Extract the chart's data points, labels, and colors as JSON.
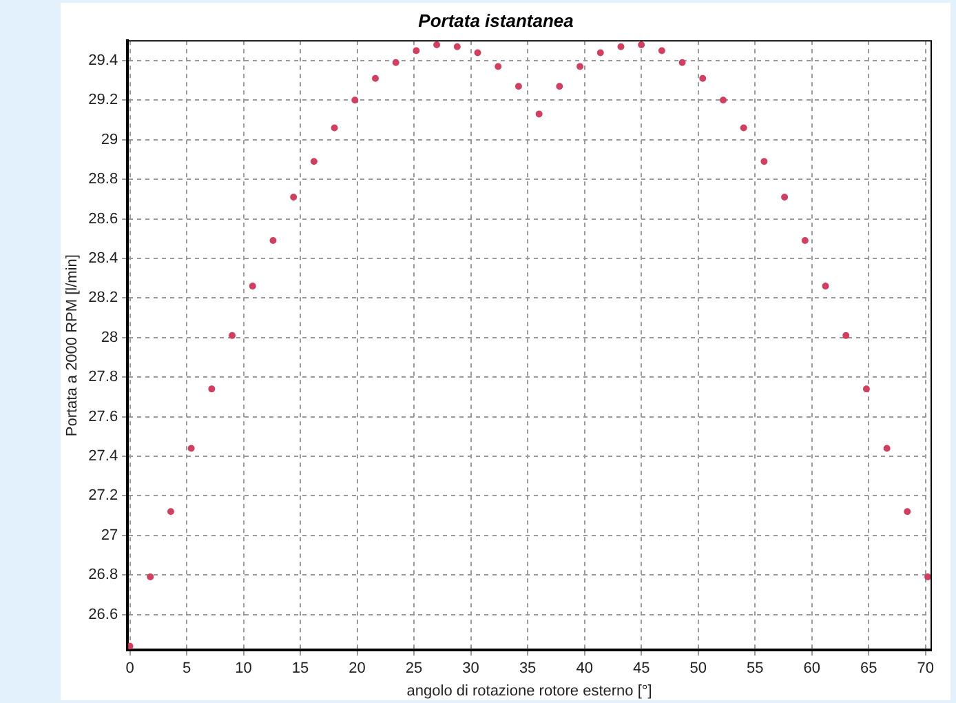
{
  "chart_data": {
    "type": "scatter",
    "title": "Portata istantanea",
    "xlabel": "angolo di rotazione rotore esterno [°]",
    "ylabel": "Portata a 2000 RPM [l/min]",
    "x": [
      0,
      1.8,
      3.6,
      5.4,
      7.2,
      9,
      10.8,
      12.6,
      14.4,
      16.2,
      18,
      19.8,
      21.6,
      23.4,
      25.2,
      27,
      28.8,
      30.6,
      32.4,
      34.2,
      36,
      37.8,
      39.6,
      41.4,
      43.2,
      45,
      46.8,
      48.6,
      50.4,
      52.2,
      54,
      55.8,
      57.6,
      59.4,
      61.2,
      63,
      64.8,
      66.6,
      68.4,
      70.2
    ],
    "series": [
      {
        "color": "#d04060",
        "values": [
          26.44,
          26.79,
          27.12,
          27.44,
          27.74,
          28.01,
          28.26,
          28.49,
          28.71,
          28.89,
          29.06,
          29.2,
          29.31,
          29.39,
          29.45,
          29.48,
          29.47,
          29.44,
          29.37,
          29.27,
          29.13,
          29.27,
          29.37,
          29.44,
          29.47,
          29.48,
          29.45,
          29.39,
          29.31,
          29.2,
          29.06,
          28.89,
          28.71,
          28.49,
          28.26,
          28.01,
          27.74,
          27.44,
          27.12,
          26.79
        ]
      }
    ],
    "xlim": [
      -0.2,
      70.5
    ],
    "xticks": [
      0,
      5,
      10,
      15,
      20,
      25,
      30,
      35,
      40,
      45,
      50,
      55,
      60,
      65,
      70
    ],
    "ylim": [
      26.42,
      29.5
    ],
    "yticks": [
      26.6,
      26.8,
      27,
      27.2,
      27.4,
      27.6,
      27.8,
      28,
      28.2,
      28.4,
      28.6,
      28.8,
      29,
      29.2,
      29.4
    ],
    "grid": true,
    "legend": false,
    "marker": "circle"
  }
}
